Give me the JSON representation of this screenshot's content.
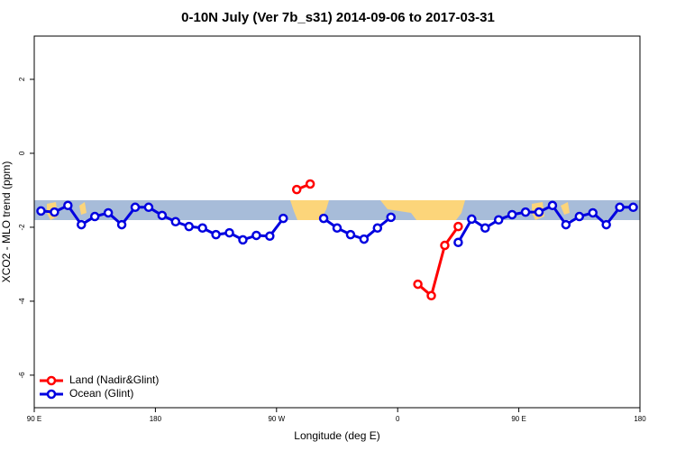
{
  "chart_data": {
    "type": "line",
    "title": "0-10N July (Ver 7b_s31)   2014-09-06 to 2017-03-31",
    "x_label": "Longitude (deg E)",
    "y_label": "XCO2 - MLO trend (ppm)",
    "x": [
      95,
      105,
      115,
      125,
      135,
      145,
      155,
      165,
      175,
      185,
      195,
      205,
      215,
      225,
      235,
      245,
      255,
      265,
      275,
      285,
      295,
      305,
      315,
      325,
      335,
      345,
      355,
      365,
      375,
      385,
      395,
      405,
      415,
      425,
      435,
      445,
      455,
      465,
      475,
      485,
      495,
      505,
      515,
      525,
      535
    ],
    "series": [
      {
        "name": "Land (Nadir&Glint)",
        "color": "#ff0000",
        "values": [
          null,
          null,
          null,
          null,
          null,
          null,
          null,
          null,
          null,
          null,
          null,
          null,
          null,
          null,
          null,
          null,
          null,
          null,
          null,
          -0.98,
          -0.83,
          null,
          null,
          null,
          null,
          null,
          null,
          null,
          -3.54,
          -3.85,
          -2.49,
          -1.98,
          null,
          null,
          null,
          null,
          null,
          null,
          null,
          null,
          null,
          null,
          null,
          null,
          null
        ]
      },
      {
        "name": "Ocean (Glint)",
        "color": "#0000e0",
        "values": [
          -1.56,
          -1.59,
          -1.41,
          -1.93,
          -1.71,
          -1.61,
          -1.93,
          -1.46,
          -1.46,
          -1.68,
          -1.85,
          -1.98,
          -2.02,
          -2.2,
          -2.15,
          -2.34,
          -2.22,
          -2.24,
          -1.76,
          null,
          null,
          -1.76,
          -2.02,
          -2.2,
          -2.32,
          -2.02,
          -1.73,
          null,
          null,
          null,
          null,
          -2.41,
          -1.78,
          -2.02,
          -1.8,
          -1.66,
          -1.59,
          -1.59,
          -1.41,
          -1.93,
          -1.71,
          -1.61,
          -1.93,
          -1.46,
          -1.46
        ]
      }
    ],
    "xlim": [
      90,
      540
    ],
    "xticks": [
      {
        "value": 90,
        "label": "90 E"
      },
      {
        "value": 180,
        "label": "180"
      },
      {
        "value": 270,
        "label": "90 W"
      },
      {
        "value": 360,
        "label": "0"
      },
      {
        "value": 450,
        "label": "90 E"
      },
      {
        "value": 540,
        "label": "180"
      }
    ],
    "ylim": [
      -6.88,
      3.17
    ],
    "yticks": [
      -6,
      -4,
      -2,
      0,
      2
    ],
    "legend": "bottom-left"
  }
}
